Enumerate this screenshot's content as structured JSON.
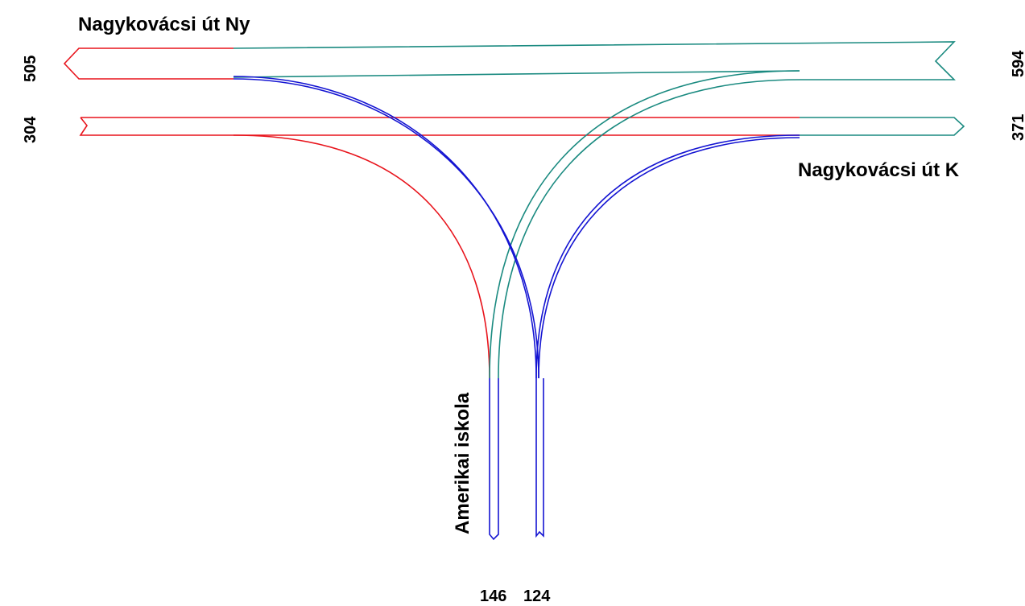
{
  "colors": {
    "red": "#e8141c",
    "teal": "#1a8a80",
    "blue": "#1414d2",
    "text": "#000000"
  },
  "roads": {
    "west": {
      "name": "Nagykovácsi út Ny",
      "out_count": "505",
      "in_count": "304"
    },
    "east": {
      "name": "Nagykovácsi út K",
      "out_count": "594",
      "in_count": "371"
    },
    "south": {
      "name": "Amerikai iskola",
      "in_count": "146",
      "out_count": "124"
    }
  }
}
